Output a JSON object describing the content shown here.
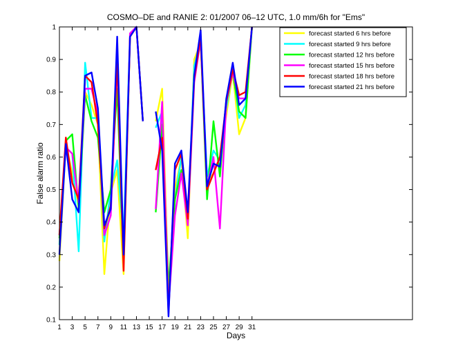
{
  "chart_data": {
    "type": "line",
    "title": "COSMO–DE and RANIE 2: 01/2007 06–12 UTC, 1.0 mm/6h for \"Ems\"",
    "xlabel": "Days",
    "ylabel": "False alarm ratio",
    "xlim": [
      1,
      56
    ],
    "ylim": [
      0.1,
      1
    ],
    "grid": false,
    "legend_position": "top-right",
    "x_ticks": [
      1,
      3,
      5,
      7,
      9,
      11,
      13,
      15,
      17,
      19,
      21,
      23,
      25,
      27,
      29,
      31
    ],
    "y_ticks": [
      0.1,
      0.2,
      0.3,
      0.4,
      0.5,
      0.6,
      0.7,
      0.8,
      0.9,
      1
    ],
    "x": [
      1,
      2,
      3,
      4,
      5,
      6,
      7,
      8,
      9,
      10,
      11,
      12,
      13,
      14,
      15,
      16,
      17,
      18,
      19,
      20,
      21,
      22,
      23,
      24,
      25,
      26,
      27,
      28,
      29,
      30,
      31
    ],
    "series": [
      {
        "name": "forecast started 6 hrs before",
        "color": "#ffff00",
        "values": [
          0.28,
          0.64,
          0.55,
          0.45,
          0.8,
          0.76,
          0.7,
          0.24,
          0.49,
          0.56,
          0.24,
          0.97,
          1.0,
          0.71,
          null,
          0.71,
          0.81,
          0.19,
          0.5,
          0.6,
          0.35,
          0.9,
          0.95,
          0.52,
          0.55,
          0.6,
          0.73,
          0.86,
          0.67,
          0.72,
          1.0
        ]
      },
      {
        "name": "forecast started 9 hrs before",
        "color": "#00ffff",
        "values": [
          0.33,
          0.63,
          0.61,
          0.31,
          0.89,
          0.72,
          0.72,
          0.34,
          0.5,
          0.59,
          0.35,
          0.98,
          1.0,
          0.71,
          null,
          0.69,
          0.74,
          0.15,
          0.47,
          0.6,
          0.4,
          0.88,
          0.95,
          0.54,
          0.62,
          0.59,
          0.75,
          0.87,
          0.72,
          0.76,
          1.0
        ]
      },
      {
        "name": "forecast started 12 hrs before",
        "color": "#00ff00",
        "values": [
          0.35,
          0.65,
          0.67,
          0.44,
          0.79,
          0.71,
          0.66,
          0.43,
          0.5,
          0.81,
          0.27,
          0.97,
          1.0,
          0.71,
          null,
          0.43,
          0.7,
          0.2,
          0.47,
          0.56,
          0.4,
          0.85,
          0.96,
          0.47,
          0.71,
          0.54,
          0.78,
          0.86,
          0.74,
          0.72,
          1.0
        ]
      },
      {
        "name": "forecast started 15 hrs before",
        "color": "#ff00ff",
        "values": [
          0.36,
          0.63,
          0.61,
          0.46,
          0.81,
          0.81,
          0.73,
          0.36,
          0.42,
          0.89,
          0.27,
          0.98,
          1.0,
          0.71,
          null,
          0.44,
          0.77,
          0.14,
          0.42,
          0.55,
          0.39,
          0.83,
          0.96,
          0.51,
          0.6,
          0.38,
          0.77,
          0.86,
          0.78,
          0.78,
          1.0
        ]
      },
      {
        "name": "forecast started 18 hrs before",
        "color": "#ff0000",
        "values": [
          0.36,
          0.66,
          0.52,
          0.47,
          0.85,
          0.83,
          0.7,
          0.38,
          0.45,
          0.9,
          0.25,
          0.97,
          1.0,
          0.71,
          null,
          0.56,
          0.66,
          0.12,
          0.56,
          0.61,
          0.41,
          0.84,
          0.97,
          0.5,
          0.55,
          0.6,
          0.77,
          0.87,
          0.79,
          0.8,
          1.0
        ]
      },
      {
        "name": "forecast started 21 hrs before",
        "color": "#0000ff",
        "values": [
          0.3,
          0.64,
          0.47,
          0.43,
          0.85,
          0.86,
          0.75,
          0.39,
          0.44,
          0.97,
          0.3,
          0.97,
          1.0,
          0.71,
          null,
          0.74,
          0.62,
          0.11,
          0.58,
          0.62,
          0.43,
          0.85,
          0.99,
          0.51,
          0.58,
          0.57,
          0.78,
          0.89,
          0.76,
          0.78,
          1.0
        ]
      }
    ]
  }
}
